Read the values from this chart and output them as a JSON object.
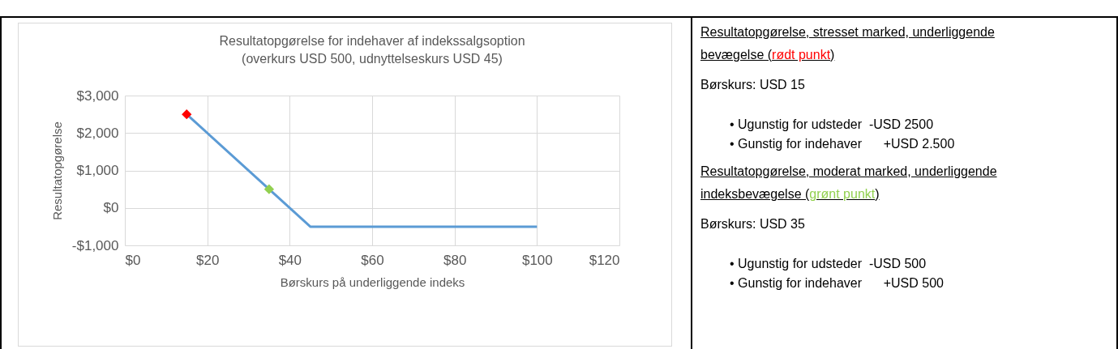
{
  "chart_data": {
    "type": "line",
    "title": [
      "Resultatopgørelse for indehaver af indekssalgsoption",
      "(overkurs USD 500, udnyttelseskurs USD 45)"
    ],
    "xlabel": "Børskurs på underliggende indeks",
    "ylabel": "Resultatopgørelse",
    "series": [
      {
        "color": "#5b9bd5",
        "x": [
          15,
          35,
          45,
          100
        ],
        "values": [
          2500,
          500,
          -500,
          -500
        ]
      },
      {
        "type": "scatter",
        "marker": "diamond",
        "color": "#ff0000",
        "x": [
          15
        ],
        "values": [
          2500
        ]
      },
      {
        "type": "scatter",
        "marker": "diamond",
        "color": "#92d050",
        "x": [
          35
        ],
        "values": [
          500
        ]
      }
    ],
    "xlim": [
      0,
      120
    ],
    "xticks": [
      {
        "value": 0,
        "label": "$0"
      },
      {
        "value": 20,
        "label": "$20"
      },
      {
        "value": 40,
        "label": "$40"
      },
      {
        "value": 60,
        "label": "$60"
      },
      {
        "value": 80,
        "label": "$80"
      },
      {
        "value": 100,
        "label": "$100"
      },
      {
        "value": 120,
        "label": "$120"
      }
    ],
    "ylim": [
      -1000,
      3000
    ],
    "yticks": [
      {
        "value": -1000,
        "label": "-$1,000"
      },
      {
        "value": 0,
        "label": "$0"
      },
      {
        "value": 1000,
        "label": "$1,000"
      },
      {
        "value": 2000,
        "label": "$2,000"
      },
      {
        "value": 3000,
        "label": "$3,000"
      }
    ],
    "grid": true,
    "annotations": [
      "Resultatopgørelse, stresset marked, underliggende bevægelse (rødt punkt)",
      "Børskurs: USD 15",
      "• Ugunstig for udsteder  -USD 2500",
      "• Gunstig for indehaver      +USD 2.500",
      "Resultatopgørelse, moderat marked, underliggende indeksbevægelse (grønt punkt)",
      "Børskurs: USD 35",
      "• Ugunstig for udsteder  -USD 500",
      "• Gunstig for indehaver      +USD 500"
    ]
  }
}
